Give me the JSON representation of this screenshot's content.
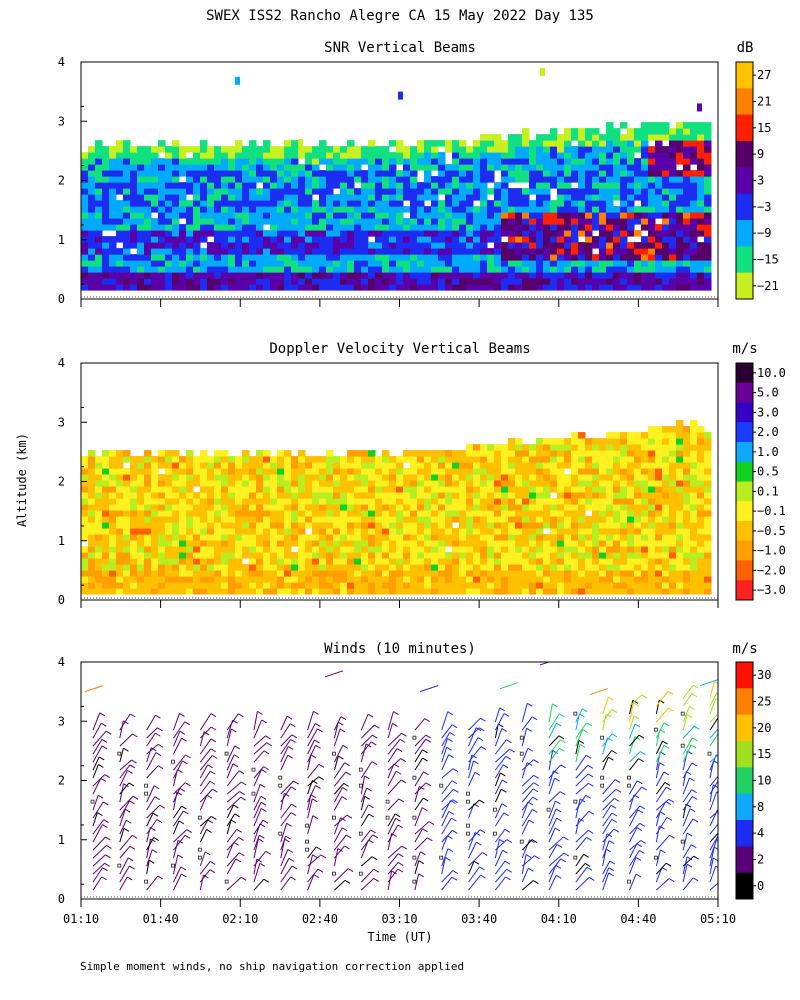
{
  "figure_title": "SWEX ISS2 Rancho Alegre CA  15 May 2022 Day 135",
  "y_axis_label": "Altitude (km)",
  "x_axis_label": "Time (UT)",
  "footer": "Simple moment winds, no ship navigation correction applied",
  "chart_data": [
    {
      "type": "heatmap",
      "title": "SNR Vertical Beams",
      "xlabel": "",
      "ylabel": "Altitude (km)",
      "ylim": [
        0,
        4
      ],
      "y_ticks": [
        "0",
        "1",
        "2",
        "3",
        "4"
      ],
      "x_ticks": [
        "01:10",
        "01:40",
        "02:10",
        "02:40",
        "03:10",
        "03:40",
        "04:10",
        "04:40",
        "05:10"
      ],
      "colorbar": {
        "unit": "dB",
        "labels": [
          "27",
          "21",
          "15",
          "9",
          "3",
          "−3",
          "−9",
          "−15",
          "−21"
        ],
        "colors": [
          "#ffc400",
          "#ff8000",
          "#ff2000",
          "#58006a",
          "#5a00a8",
          "#1c2cf0",
          "#00aaff",
          "#10e080",
          "#c8f020"
        ]
      }
    },
    {
      "type": "heatmap",
      "title": "Doppler Velocity Vertical Beams",
      "xlabel": "",
      "ylabel": "Altitude (km)",
      "ylim": [
        0,
        4
      ],
      "y_ticks": [
        "0",
        "1",
        "2",
        "3",
        "4"
      ],
      "x_ticks": [
        "01:10",
        "01:40",
        "02:10",
        "02:40",
        "03:10",
        "03:40",
        "04:10",
        "04:40",
        "05:10"
      ],
      "colorbar": {
        "unit": "m/s",
        "labels": [
          "10.0",
          "5.0",
          "3.0",
          "2.0",
          "1.0",
          "0.5",
          "0.1",
          "−0.1",
          "−0.5",
          "−1.0",
          "−2.0",
          "−3.0"
        ],
        "colors": [
          "#2a0030",
          "#6a0098",
          "#3400c8",
          "#1a3cff",
          "#10a8ff",
          "#10d020",
          "#b8ee20",
          "#fff020",
          "#ffc000",
          "#ffa000",
          "#ff6000",
          "#ff2020"
        ]
      }
    },
    {
      "type": "scatter",
      "title": "Winds (10 minutes)",
      "xlabel": "Time (UT)",
      "ylabel": "Altitude (km)",
      "ylim": [
        0,
        4
      ],
      "y_ticks": [
        "0",
        "1",
        "2",
        "3",
        "4"
      ],
      "x_ticks": [
        "01:10",
        "01:40",
        "02:10",
        "02:40",
        "03:10",
        "03:40",
        "04:10",
        "04:40",
        "05:10"
      ],
      "colorbar": {
        "unit": "m/s",
        "labels": [
          "30",
          "25",
          "20",
          "15",
          "10",
          "8",
          "4",
          "2",
          "0"
        ],
        "colors": [
          "#ff1000",
          "#ff8000",
          "#ffc000",
          "#a0e020",
          "#20d060",
          "#10a8ff",
          "#1c2cf0",
          "#5a0078",
          "#000000"
        ]
      }
    }
  ]
}
